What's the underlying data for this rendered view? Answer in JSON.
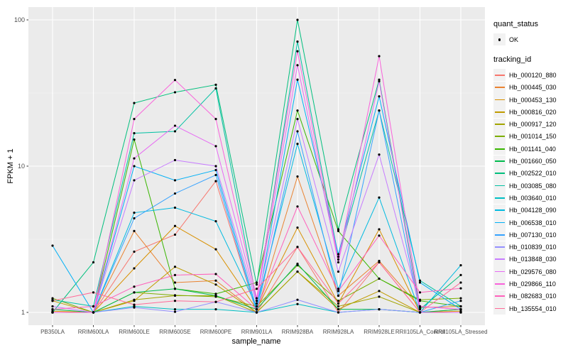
{
  "axes": {
    "y_title": "FPKM + 1",
    "x_title": "sample_name"
  },
  "legend": {
    "quant_status_title": "quant_status",
    "quant_status_items": [
      {
        "label": "OK"
      }
    ],
    "tracking_id_title": "tracking_id"
  },
  "chart_data": {
    "type": "line",
    "title": "",
    "xlabel": "sample_name",
    "ylabel": "FPKM + 1",
    "yscale": "log10",
    "ylim": [
      0.82,
      122
    ],
    "y_ticks": [
      1,
      10,
      100
    ],
    "y_minor_ticks": [
      3.162,
      31.62
    ],
    "grid": "on",
    "legend_position": "right",
    "panel_bg": "#EBEBEB",
    "grid_color": "#FFFFFF",
    "point_color": "#000000",
    "categories": [
      "PB350LA",
      "RRIM600LA",
      "RRIM600LE",
      "RRIM600SE",
      "RRIM600PE",
      "RRIM901LA",
      "RRIM928BA",
      "RRIM928LA",
      "RRIM928LE",
      "RRII105LA_Control",
      "RRII105LA_Stressed"
    ],
    "quant_status_all": "OK",
    "series": [
      {
        "name": "Hb_000120_880",
        "color": "#F8766D",
        "values": [
          1,
          1,
          2.6,
          3.4,
          7.9,
          1,
          2.8,
          1,
          2.2,
          1,
          1.05
        ]
      },
      {
        "name": "Hb_000445_030",
        "color": "#EA8331",
        "values": [
          1,
          1,
          3.6,
          1.6,
          1.65,
          1,
          8.5,
          1.3,
          2.25,
          1.08,
          1.1
        ]
      },
      {
        "name": "Hb_000453_130",
        "color": "#D89000",
        "values": [
          1.02,
          1,
          2.0,
          3.9,
          2.7,
          1.05,
          3.8,
          1.15,
          3.7,
          1,
          1.02
        ]
      },
      {
        "name": "Hb_000816_020",
        "color": "#C09B00",
        "values": [
          1.2,
          1,
          1.2,
          2.05,
          1.55,
          1,
          1.9,
          1.05,
          1.4,
          1,
          1
        ]
      },
      {
        "name": "Hb_000917_120",
        "color": "#A3A500",
        "values": [
          1,
          1,
          1.22,
          1.3,
          1.3,
          1,
          1.9,
          1.1,
          1.28,
          1,
          1
        ]
      },
      {
        "name": "Hb_001014_150",
        "color": "#7CAE00",
        "values": [
          1.25,
          1,
          1.37,
          1.31,
          1.28,
          1.1,
          2.1,
          1.2,
          1.7,
          1.22,
          1.25
        ]
      },
      {
        "name": "Hb_001141_040",
        "color": "#39B600",
        "values": [
          1,
          1,
          15.2,
          1.45,
          1.34,
          1.6,
          24,
          3.6,
          1.7,
          1.2,
          1.1
        ]
      },
      {
        "name": "Hb_001660_050",
        "color": "#00BB4E",
        "values": [
          1.05,
          1,
          1.37,
          1.45,
          1.3,
          1.05,
          2.15,
          1.05,
          1.05,
          1,
          1.05
        ]
      },
      {
        "name": "Hb_002522_010",
        "color": "#00BF7D",
        "values": [
          1,
          2.2,
          27,
          32,
          36,
          1.55,
          100,
          3.7,
          39,
          1.05,
          1.8
        ]
      },
      {
        "name": "Hb_003085_080",
        "color": "#00C1A3",
        "values": [
          1.22,
          1.1,
          16.8,
          17.3,
          34,
          1.2,
          71,
          2.4,
          24,
          1.65,
          1.1
        ]
      },
      {
        "name": "Hb_003640_010",
        "color": "#00BFC4",
        "values": [
          1,
          1,
          1.1,
          1.05,
          1.05,
          1,
          1.14,
          1,
          1.05,
          1,
          1
        ]
      },
      {
        "name": "Hb_004128_090",
        "color": "#00BAE0",
        "values": [
          1,
          1,
          4.8,
          5.2,
          4.2,
          1.1,
          14.2,
          1.45,
          6.1,
          1,
          2.1
        ]
      },
      {
        "name": "Hb_006538_010",
        "color": "#00B0F6",
        "values": [
          2.86,
          1,
          10,
          8,
          9.4,
          1.05,
          39,
          2.5,
          30,
          1.6,
          1.05
        ]
      },
      {
        "name": "Hb_007130_010",
        "color": "#35A2FF",
        "values": [
          1,
          1,
          4.4,
          6.5,
          8.7,
          1,
          17.3,
          1.3,
          24,
          1,
          1.2
        ]
      },
      {
        "name": "Hb_010839_010",
        "color": "#9590FF",
        "values": [
          1,
          1,
          1.08,
          1.01,
          1.18,
          1,
          1.22,
          1,
          1.05,
          1,
          1
        ]
      },
      {
        "name": "Hb_013848_030",
        "color": "#C77CFF",
        "values": [
          1.1,
          1,
          8,
          11,
          10,
          1.15,
          21,
          1.9,
          12,
          1.1,
          1.05
        ]
      },
      {
        "name": "Hb_029576_080",
        "color": "#E76BF3",
        "values": [
          1,
          1,
          11.3,
          18.9,
          13.7,
          1.2,
          49,
          2.2,
          38,
          1,
          1
        ]
      },
      {
        "name": "Hb_029866_110",
        "color": "#FA62DB",
        "values": [
          1,
          1,
          21,
          38.8,
          21,
          1.25,
          61,
          2.3,
          56.5,
          1.1,
          1.05
        ]
      },
      {
        "name": "Hb_082683_010",
        "color": "#FF62BC",
        "values": [
          1.05,
          1.1,
          1.5,
          1.8,
          1.83,
          1.05,
          5.3,
          1.4,
          3.35,
          1.37,
          1.46
        ]
      },
      {
        "name": "Hb_135554_010",
        "color": "#FF6A98",
        "values": [
          1.2,
          1.37,
          1.13,
          1.2,
          1.18,
          1.45,
          2.8,
          1.15,
          2.2,
          1,
          1.6
        ]
      }
    ]
  }
}
